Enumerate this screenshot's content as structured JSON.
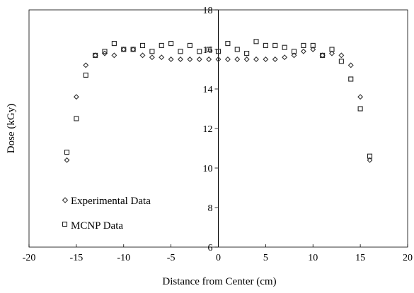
{
  "chart_data": {
    "type": "scatter",
    "xlabel": "Distance from Center (cm)",
    "ylabel": "Dose (kGy)",
    "xlim": [
      -20,
      20
    ],
    "ylim": [
      6,
      18
    ],
    "x_ticks": [
      "-20",
      "-15",
      "-10",
      "-5",
      "0",
      "5",
      "10",
      "15",
      "20"
    ],
    "y_ticks": [
      "6",
      "8",
      "10",
      "12",
      "14",
      "16",
      "18"
    ],
    "grid": false,
    "legend_position": "bottom-left",
    "series": [
      {
        "name": "Experimental Data",
        "marker": "diamond",
        "color": "#333333",
        "points": [
          [
            -16,
            10.4
          ],
          [
            -15,
            13.6
          ],
          [
            -14,
            15.2
          ],
          [
            -13,
            15.7
          ],
          [
            -12,
            15.8
          ],
          [
            -11,
            15.7
          ],
          [
            -10,
            16.0
          ],
          [
            -9,
            16.0
          ],
          [
            -8,
            15.7
          ],
          [
            -7,
            15.6
          ],
          [
            -6,
            15.6
          ],
          [
            -5,
            15.5
          ],
          [
            -4,
            15.5
          ],
          [
            -3,
            15.5
          ],
          [
            -2,
            15.5
          ],
          [
            -1,
            15.5
          ],
          [
            0,
            15.5
          ],
          [
            1,
            15.5
          ],
          [
            2,
            15.5
          ],
          [
            3,
            15.5
          ],
          [
            4,
            15.5
          ],
          [
            5,
            15.5
          ],
          [
            6,
            15.5
          ],
          [
            7,
            15.6
          ],
          [
            8,
            15.7
          ],
          [
            9,
            15.9
          ],
          [
            10,
            16.0
          ],
          [
            11,
            15.7
          ],
          [
            12,
            15.8
          ],
          [
            13,
            15.7
          ],
          [
            14,
            15.2
          ],
          [
            15,
            13.6
          ],
          [
            16,
            10.4
          ]
        ]
      },
      {
        "name": "MCNP Data",
        "marker": "square",
        "color": "#222222",
        "points": [
          [
            -16,
            10.8
          ],
          [
            -15,
            12.5
          ],
          [
            -14,
            14.7
          ],
          [
            -13,
            15.7
          ],
          [
            -12,
            15.9
          ],
          [
            -11,
            16.3
          ],
          [
            -10,
            16.0
          ],
          [
            -9,
            16.0
          ],
          [
            -8,
            16.2
          ],
          [
            -7,
            15.9
          ],
          [
            -6,
            16.2
          ],
          [
            -5,
            16.3
          ],
          [
            -4,
            15.9
          ],
          [
            -3,
            16.2
          ],
          [
            -2,
            15.9
          ],
          [
            -1,
            16.0
          ],
          [
            0,
            15.9
          ],
          [
            1,
            16.3
          ],
          [
            2,
            16.0
          ],
          [
            3,
            15.8
          ],
          [
            4,
            16.4
          ],
          [
            5,
            16.2
          ],
          [
            6,
            16.2
          ],
          [
            7,
            16.1
          ],
          [
            8,
            15.9
          ],
          [
            9,
            16.2
          ],
          [
            10,
            16.2
          ],
          [
            11,
            15.7
          ],
          [
            12,
            16.0
          ],
          [
            13,
            15.4
          ],
          [
            14,
            14.5
          ],
          [
            15,
            13.0
          ],
          [
            16,
            10.6
          ]
        ]
      }
    ]
  }
}
